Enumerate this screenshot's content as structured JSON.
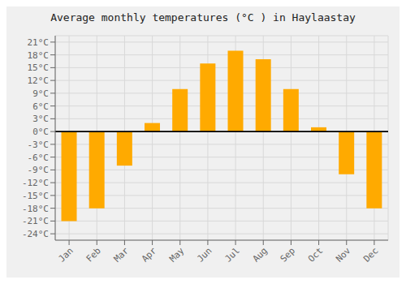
{
  "chart_data": {
    "type": "bar",
    "title": "Average monthly temperatures (°C ) in Haylaastay",
    "categories": [
      "Jan",
      "Feb",
      "Mar",
      "Apr",
      "May",
      "Jun",
      "Jul",
      "Aug",
      "Sep",
      "Oct",
      "Nov",
      "Dec"
    ],
    "values": [
      -21,
      -18,
      -8,
      2,
      10,
      16,
      19,
      17,
      10,
      1,
      -10,
      -18
    ],
    "color": "#FFAA00",
    "ylim": [
      -25.5,
      22.5
    ],
    "yticks": [
      {
        "value": -24,
        "label": "-24°C"
      },
      {
        "value": -21,
        "label": "-21°C"
      },
      {
        "value": -18,
        "label": "-18°C"
      },
      {
        "value": -15,
        "label": "-15°C"
      },
      {
        "value": -12,
        "label": "-12°C"
      },
      {
        "value": -9,
        "label": "-9°C"
      },
      {
        "value": -6,
        "label": "-6°C"
      },
      {
        "value": -3,
        "label": "-3°C"
      },
      {
        "value": 0,
        "label": "0°C"
      },
      {
        "value": 3,
        "label": "3°C"
      },
      {
        "value": 6,
        "label": "6°C"
      },
      {
        "value": 9,
        "label": "9°C"
      },
      {
        "value": 12,
        "label": "12°C"
      },
      {
        "value": 15,
        "label": "15°C"
      },
      {
        "value": 18,
        "label": "18°C"
      },
      {
        "value": 21,
        "label": "21°C"
      }
    ],
    "grid": true
  }
}
